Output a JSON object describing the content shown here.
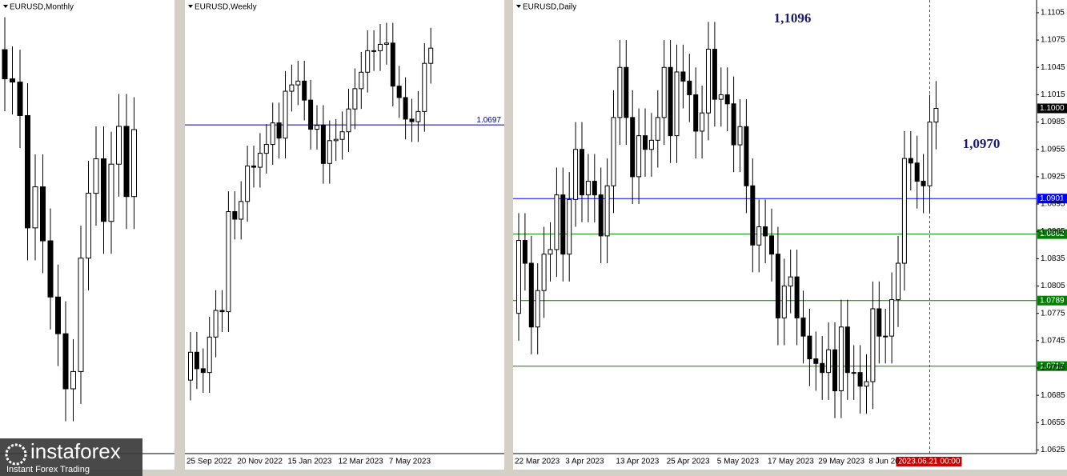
{
  "chart_data": [
    {
      "type": "candlestick",
      "title": "EURUSD,Monthly",
      "categories": [
        null,
        null,
        null,
        null,
        null,
        null,
        null,
        null,
        null,
        null,
        null,
        null,
        null,
        null,
        null,
        null,
        null,
        null
      ],
      "open": [
        1.137,
        1.1235,
        1.122,
        1.1065,
        1.0545,
        1.0735,
        1.0485,
        1.0225,
        1.0055,
        0.98,
        0.988,
        1.0405,
        1.0705,
        1.0865,
        1.0575,
        1.084,
        1.1015,
        1.069
      ],
      "high": [
        1.152,
        1.1385,
        1.137,
        1.1215,
        1.0885,
        1.0885,
        1.0635,
        1.0375,
        1.0205,
        1.003,
        1.0555,
        1.0855,
        1.1015,
        1.1015,
        1.099,
        1.1165,
        1.1165,
        1.115
      ],
      "low": [
        1.1085,
        1.107,
        1.0915,
        1.0395,
        1.0395,
        1.0335,
        1.0075,
        0.9905,
        0.965,
        0.965,
        0.973,
        1.0255,
        1.0555,
        1.0425,
        1.0425,
        1.069,
        1.054,
        1.054
      ],
      "close": [
        1.1235,
        1.122,
        1.1065,
        1.0545,
        1.0735,
        1.0485,
        1.0225,
        1.0055,
        0.98,
        0.988,
        1.0405,
        1.0705,
        1.0865,
        1.0575,
        1.084,
        1.1015,
        1.069,
        1.1
      ],
      "ylim": [
        0.95,
        1.16
      ]
    },
    {
      "type": "candlestick",
      "title": "EURUSD,Weekly",
      "categories": [
        "25 Sep 2022",
        null,
        null,
        null,
        null,
        null,
        null,
        null,
        "20 Nov 2022",
        null,
        null,
        null,
        null,
        null,
        null,
        null,
        "15 Jan 2023",
        null,
        null,
        null,
        null,
        null,
        null,
        null,
        "12 Mar 2023",
        null,
        null,
        null,
        null,
        null,
        null,
        null,
        "7 May 2023",
        null,
        null,
        null,
        null,
        null,
        null
      ],
      "open": [
        0.969,
        0.98,
        0.9735,
        0.972,
        0.986,
        0.9965,
        0.996,
        1.0355,
        1.0325,
        1.0395,
        1.0535,
        1.053,
        1.0585,
        1.062,
        1.0705,
        1.0645,
        1.083,
        1.0855,
        1.087,
        1.0795,
        1.068,
        1.0695,
        1.0545,
        1.0635,
        1.064,
        1.067,
        1.076,
        1.084,
        1.0905,
        1.099,
        1.099,
        1.1015,
        1.102,
        1.085,
        1.0805,
        1.072,
        1.071,
        1.075,
        1.094
      ],
      "high": [
        0.988,
        0.988,
        0.9815,
        0.994,
        1.0045,
        1.0045,
        1.0435,
        1.0435,
        1.0475,
        1.0615,
        1.0615,
        1.0665,
        1.07,
        1.0785,
        1.0785,
        1.091,
        1.0935,
        1.095,
        1.095,
        1.0875,
        1.0775,
        1.0775,
        1.0715,
        1.072,
        1.075,
        1.084,
        1.092,
        1.0985,
        1.107,
        1.107,
        1.1095,
        1.11,
        1.11,
        1.093,
        1.0885,
        1.08,
        1.083,
        1.102,
        1.108
      ],
      "low": [
        0.961,
        0.9655,
        0.964,
        0.964,
        0.978,
        0.988,
        0.988,
        1.0245,
        1.0245,
        1.0315,
        1.045,
        1.045,
        1.0505,
        1.054,
        1.0565,
        1.0565,
        1.075,
        1.0775,
        1.0715,
        1.06,
        1.06,
        1.0465,
        1.0465,
        1.0555,
        1.056,
        1.059,
        1.068,
        1.076,
        1.0825,
        1.091,
        1.091,
        1.0935,
        1.077,
        1.0725,
        1.064,
        1.063,
        1.063,
        1.067,
        1.086
      ],
      "close": [
        0.98,
        0.9735,
        0.972,
        0.986,
        0.9965,
        0.996,
        1.0355,
        1.0325,
        1.0395,
        1.0535,
        1.053,
        1.0585,
        1.062,
        1.0705,
        1.0645,
        1.083,
        1.0855,
        1.087,
        1.0795,
        1.068,
        1.0695,
        1.0545,
        1.0635,
        1.064,
        1.067,
        1.076,
        1.084,
        1.0905,
        1.099,
        1.099,
        1.1015,
        1.102,
        1.085,
        1.0805,
        1.072,
        1.071,
        1.075,
        1.094,
        1.1
      ],
      "ylim": [
        0.94,
        1.119
      ],
      "levels": [
        {
          "price": 1.0697,
          "color": "#00008b"
        }
      ]
    },
    {
      "type": "candlestick",
      "title": "EURUSD,Daily",
      "categories": [
        "22 Mar 2023",
        null,
        null,
        null,
        null,
        null,
        null,
        null,
        "3 Apr 2023",
        null,
        null,
        null,
        null,
        null,
        null,
        null,
        "13 Apr 2023",
        null,
        null,
        null,
        null,
        null,
        null,
        null,
        "25 Apr 2023",
        null,
        null,
        null,
        null,
        null,
        null,
        null,
        "5 May 2023",
        null,
        null,
        null,
        null,
        null,
        null,
        null,
        "17 May 2023",
        null,
        null,
        null,
        null,
        null,
        null,
        null,
        "29 May 2023",
        null,
        null,
        null,
        null,
        null,
        null,
        null,
        "8 Jun 20",
        null,
        null,
        null,
        null,
        null,
        null,
        null,
        null,
        null,
        null
      ],
      "open": [
        1.0775,
        1.0855,
        1.083,
        1.076,
        1.08,
        1.084,
        1.0845,
        1.0905,
        1.084,
        1.09,
        1.0955,
        1.0905,
        1.092,
        1.0905,
        1.086,
        1.0915,
        1.099,
        1.1045,
        1.099,
        1.0925,
        1.097,
        1.0955,
        1.0965,
        1.099,
        1.1045,
        1.097,
        1.104,
        1.103,
        1.1015,
        1.0975,
        1.0995,
        1.1065,
        1.101,
        1.1015,
        1.1005,
        1.096,
        1.098,
        1.0915,
        1.085,
        1.087,
        1.086,
        1.084,
        1.077,
        1.0805,
        1.0815,
        1.077,
        1.075,
        1.0725,
        1.072,
        1.071,
        1.0735,
        1.069,
        1.076,
        1.071,
        1.071,
        1.0695,
        1.07,
        1.078,
        1.075,
        1.075,
        1.079,
        1.083,
        1.0945,
        1.094,
        1.092,
        1.0915,
        1.0985
      ],
      "high": [
        1.0885,
        1.0885,
        1.086,
        1.083,
        1.087,
        1.0875,
        1.0935,
        1.0935,
        1.093,
        1.0985,
        1.0985,
        1.095,
        1.095,
        1.0935,
        1.0945,
        1.102,
        1.1075,
        1.1075,
        1.102,
        1.1,
        1.1,
        1.0995,
        1.102,
        1.1075,
        1.1075,
        1.107,
        1.107,
        1.106,
        1.1045,
        1.1025,
        1.1095,
        1.1095,
        1.1045,
        1.1045,
        1.1035,
        1.101,
        1.101,
        1.0945,
        1.09,
        1.09,
        1.089,
        1.087,
        1.0835,
        1.0845,
        1.0845,
        1.08,
        1.078,
        1.0755,
        1.075,
        1.0765,
        1.0765,
        1.079,
        1.079,
        1.074,
        1.074,
        1.073,
        1.081,
        1.081,
        1.078,
        1.082,
        1.086,
        1.0975,
        1.0975,
        1.097,
        1.095,
        1.1015,
        1.103
      ],
      "low": [
        1.0745,
        1.08,
        1.073,
        1.073,
        1.077,
        1.081,
        1.0815,
        1.081,
        1.081,
        1.087,
        1.0875,
        1.0875,
        1.0875,
        1.083,
        1.083,
        1.0885,
        1.096,
        1.096,
        1.0895,
        1.0895,
        1.0925,
        1.0925,
        1.0935,
        1.096,
        1.094,
        1.094,
        1.1,
        1.0985,
        1.0945,
        1.0945,
        1.0965,
        1.098,
        1.098,
        1.0975,
        1.093,
        1.093,
        1.0885,
        1.082,
        1.082,
        1.083,
        1.081,
        1.074,
        1.074,
        1.0775,
        1.074,
        1.072,
        1.0695,
        1.069,
        1.068,
        1.068,
        1.066,
        1.066,
        1.068,
        1.068,
        1.0665,
        1.0665,
        1.067,
        1.072,
        1.072,
        1.072,
        1.076,
        1.08,
        1.091,
        1.089,
        1.0885,
        1.0885,
        1.0955
      ],
      "close": [
        1.0855,
        1.083,
        1.076,
        1.08,
        1.084,
        1.0845,
        1.0905,
        1.084,
        1.09,
        1.0955,
        1.0905,
        1.092,
        1.0905,
        1.086,
        1.0915,
        1.099,
        1.1045,
        1.099,
        1.0925,
        1.097,
        1.0955,
        1.0965,
        1.099,
        1.1045,
        1.097,
        1.104,
        1.103,
        1.1015,
        1.0975,
        1.0995,
        1.1065,
        1.101,
        1.1015,
        1.1005,
        1.096,
        1.098,
        1.0915,
        1.085,
        1.087,
        1.086,
        1.084,
        1.077,
        1.0805,
        1.0815,
        1.077,
        1.075,
        1.0725,
        1.072,
        1.071,
        1.0735,
        1.069,
        1.076,
        1.071,
        1.071,
        1.0695,
        1.07,
        1.078,
        1.075,
        1.075,
        1.079,
        1.083,
        1.0945,
        1.094,
        1.092,
        1.0915,
        1.0985,
        1.1
      ],
      "ylim": [
        1.0621,
        1.1119
      ],
      "yticks": [
        1.1105,
        1.1075,
        1.1045,
        1.1015,
        1.0985,
        1.0955,
        1.0925,
        1.0895,
        1.0865,
        1.0835,
        1.0805,
        1.0775,
        1.0745,
        1.0715,
        1.0685,
        1.0655,
        1.0625
      ],
      "levels": [
        {
          "price": 1.0901,
          "color": "#0000ff"
        },
        {
          "price": 1.0862,
          "color": "#008000"
        },
        {
          "price": 1.0789,
          "color": "#008000"
        },
        {
          "price": 1.0717,
          "color": "#008000"
        }
      ],
      "last_price": {
        "value": 1.1,
        "label": "1.1000"
      },
      "cursor_label": "2023.06.21 00:00",
      "annotations": [
        "1,1096",
        "1,0970"
      ]
    }
  ],
  "logo": {
    "name": "instaforex",
    "tagline": "Instant Forex Trading"
  }
}
